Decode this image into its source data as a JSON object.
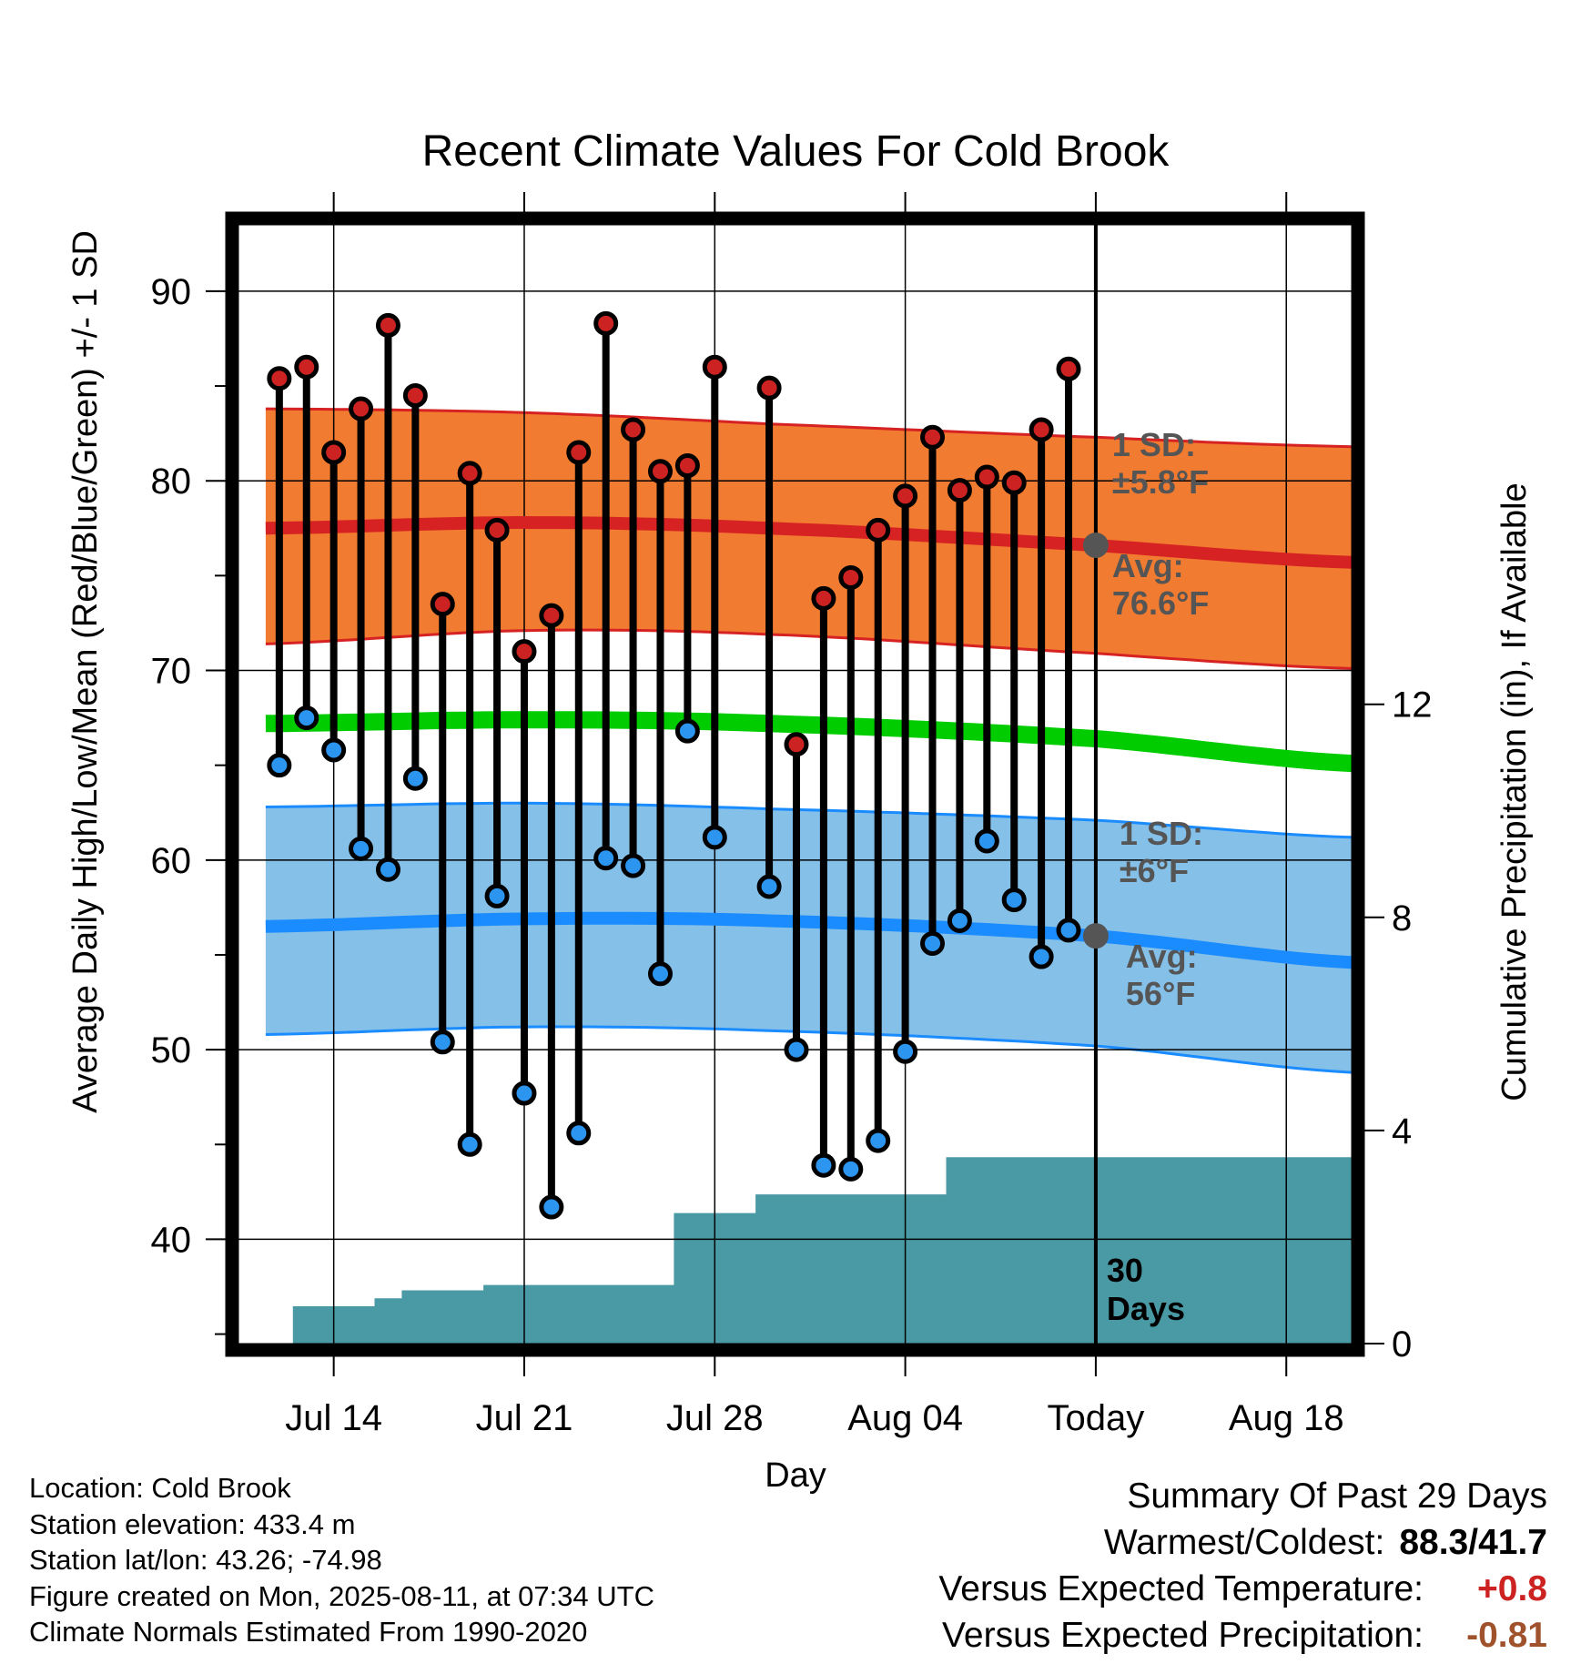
{
  "chart_data": {
    "type": "line",
    "title": "Recent Climate Values For Cold Brook",
    "xlabel": "Day",
    "ylabel": "Average Daily High/Low/Mean (Red/Blue/Green) +/- 1 SD",
    "y2label": "Cumulative Precipitation (in), If Available",
    "ylim": [
      34.5,
      93.5
    ],
    "y2lim": [
      0,
      21
    ],
    "yticks": [
      40,
      50,
      60,
      70,
      80,
      90
    ],
    "y2ticks": [
      0,
      4,
      8,
      12
    ],
    "xticks": [
      {
        "label": "Jul 14",
        "day": 14
      },
      {
        "label": "Jul 21",
        "day": 21
      },
      {
        "label": "Jul 28",
        "day": 28
      },
      {
        "label": "Aug 04",
        "day": 35
      },
      {
        "label": "Today",
        "day": 42
      },
      {
        "label": "Aug 18",
        "day": 49
      }
    ],
    "xlim": [
      10.5,
      51.4
    ],
    "today_day": 42,
    "days": [
      12,
      13,
      14,
      15,
      16,
      17,
      18,
      19,
      20,
      21,
      22,
      23,
      24,
      25,
      26,
      27,
      28,
      30,
      31,
      32,
      33,
      34,
      35,
      36,
      37,
      38,
      39,
      40,
      41
    ],
    "highs": [
      85.4,
      86.0,
      81.5,
      83.8,
      88.2,
      84.5,
      73.5,
      80.4,
      77.4,
      71.0,
      72.9,
      81.5,
      88.3,
      82.7,
      80.5,
      80.8,
      86.0,
      84.9,
      66.1,
      73.8,
      74.9,
      77.4,
      79.2,
      82.3,
      79.5,
      80.2,
      79.9,
      82.7,
      85.9
    ],
    "lows": [
      65.0,
      67.5,
      65.8,
      60.6,
      59.5,
      64.3,
      50.4,
      45.0,
      58.1,
      47.7,
      41.7,
      45.6,
      60.1,
      59.7,
      54.0,
      66.8,
      61.2,
      58.6,
      50.0,
      43.9,
      43.7,
      45.2,
      49.9,
      55.6,
      56.8,
      61.0,
      57.9,
      54.9,
      56.3
    ],
    "normal_days": [
      11.5,
      21,
      30,
      42,
      51.4
    ],
    "normal_high": [
      77.5,
      77.8,
      77.5,
      76.6,
      75.7
    ],
    "normal_high_upper": [
      83.8,
      83.6,
      83.0,
      82.3,
      81.8
    ],
    "normal_high_lower": [
      71.4,
      72.1,
      71.9,
      70.9,
      70.1
    ],
    "normal_low": [
      56.5,
      56.9,
      56.8,
      56.0,
      54.6
    ],
    "normal_low_upper": [
      62.8,
      63.0,
      62.7,
      62.1,
      61.2
    ],
    "normal_low_lower": [
      50.8,
      51.2,
      51.0,
      50.2,
      48.8
    ],
    "normal_mean": [
      67.2,
      67.4,
      67.2,
      66.4,
      65.1
    ],
    "precip_steps": [
      {
        "day": 11.5,
        "value": 0
      },
      {
        "day": 12.5,
        "value": 0.7
      },
      {
        "day": 15.5,
        "value": 0.85
      },
      {
        "day": 16.5,
        "value": 1.0
      },
      {
        "day": 19.5,
        "value": 1.1
      },
      {
        "day": 26.5,
        "value": 2.45
      },
      {
        "day": 29.5,
        "value": 2.8
      },
      {
        "day": 33.5,
        "value": 2.8
      },
      {
        "day": 36.5,
        "value": 3.5
      },
      {
        "day": 51.4,
        "value": 3.5
      }
    ],
    "high_sd_label": [
      "1 SD:",
      "±5.8°F"
    ],
    "high_avg_label": [
      "Avg:",
      "76.6°F"
    ],
    "low_sd_label": [
      "1 SD:",
      "±6°F"
    ],
    "low_avg_label": [
      "Avg:",
      "56°F"
    ],
    "precip_label": [
      "30",
      "Days"
    ],
    "grid": true,
    "colors": {
      "high_band": "#f17b30",
      "high_line": "#d62222",
      "low_band": "#85c0e8",
      "low_line": "#1a8cff",
      "mean_line": "#00cc00",
      "precip_fill": "#4a9aa5",
      "high_dot": "#cc2222",
      "low_dot": "#2b95f0",
      "today_dot": "#555555",
      "positive": "#cc2222",
      "negative": "#a0522d"
    }
  },
  "footer": {
    "location": "Location: Cold Brook",
    "elevation": "Station elevation: 433.4 m",
    "latlon": "Station lat/lon: 43.26; -74.98",
    "created": "Figure created on Mon, 2025-08-11, at 07:34 UTC",
    "normals": "Climate Normals Estimated From 1990-2020"
  },
  "summary": {
    "title": "Summary Of Past 29 Days",
    "warmest_label": "Warmest/Coldest:",
    "warmest_value": "88.3/41.7",
    "temp_label": "Versus Expected Temperature:",
    "temp_value": "+0.8",
    "precip_label": "Versus Expected Precipitation:",
    "precip_value": "-0.81"
  }
}
